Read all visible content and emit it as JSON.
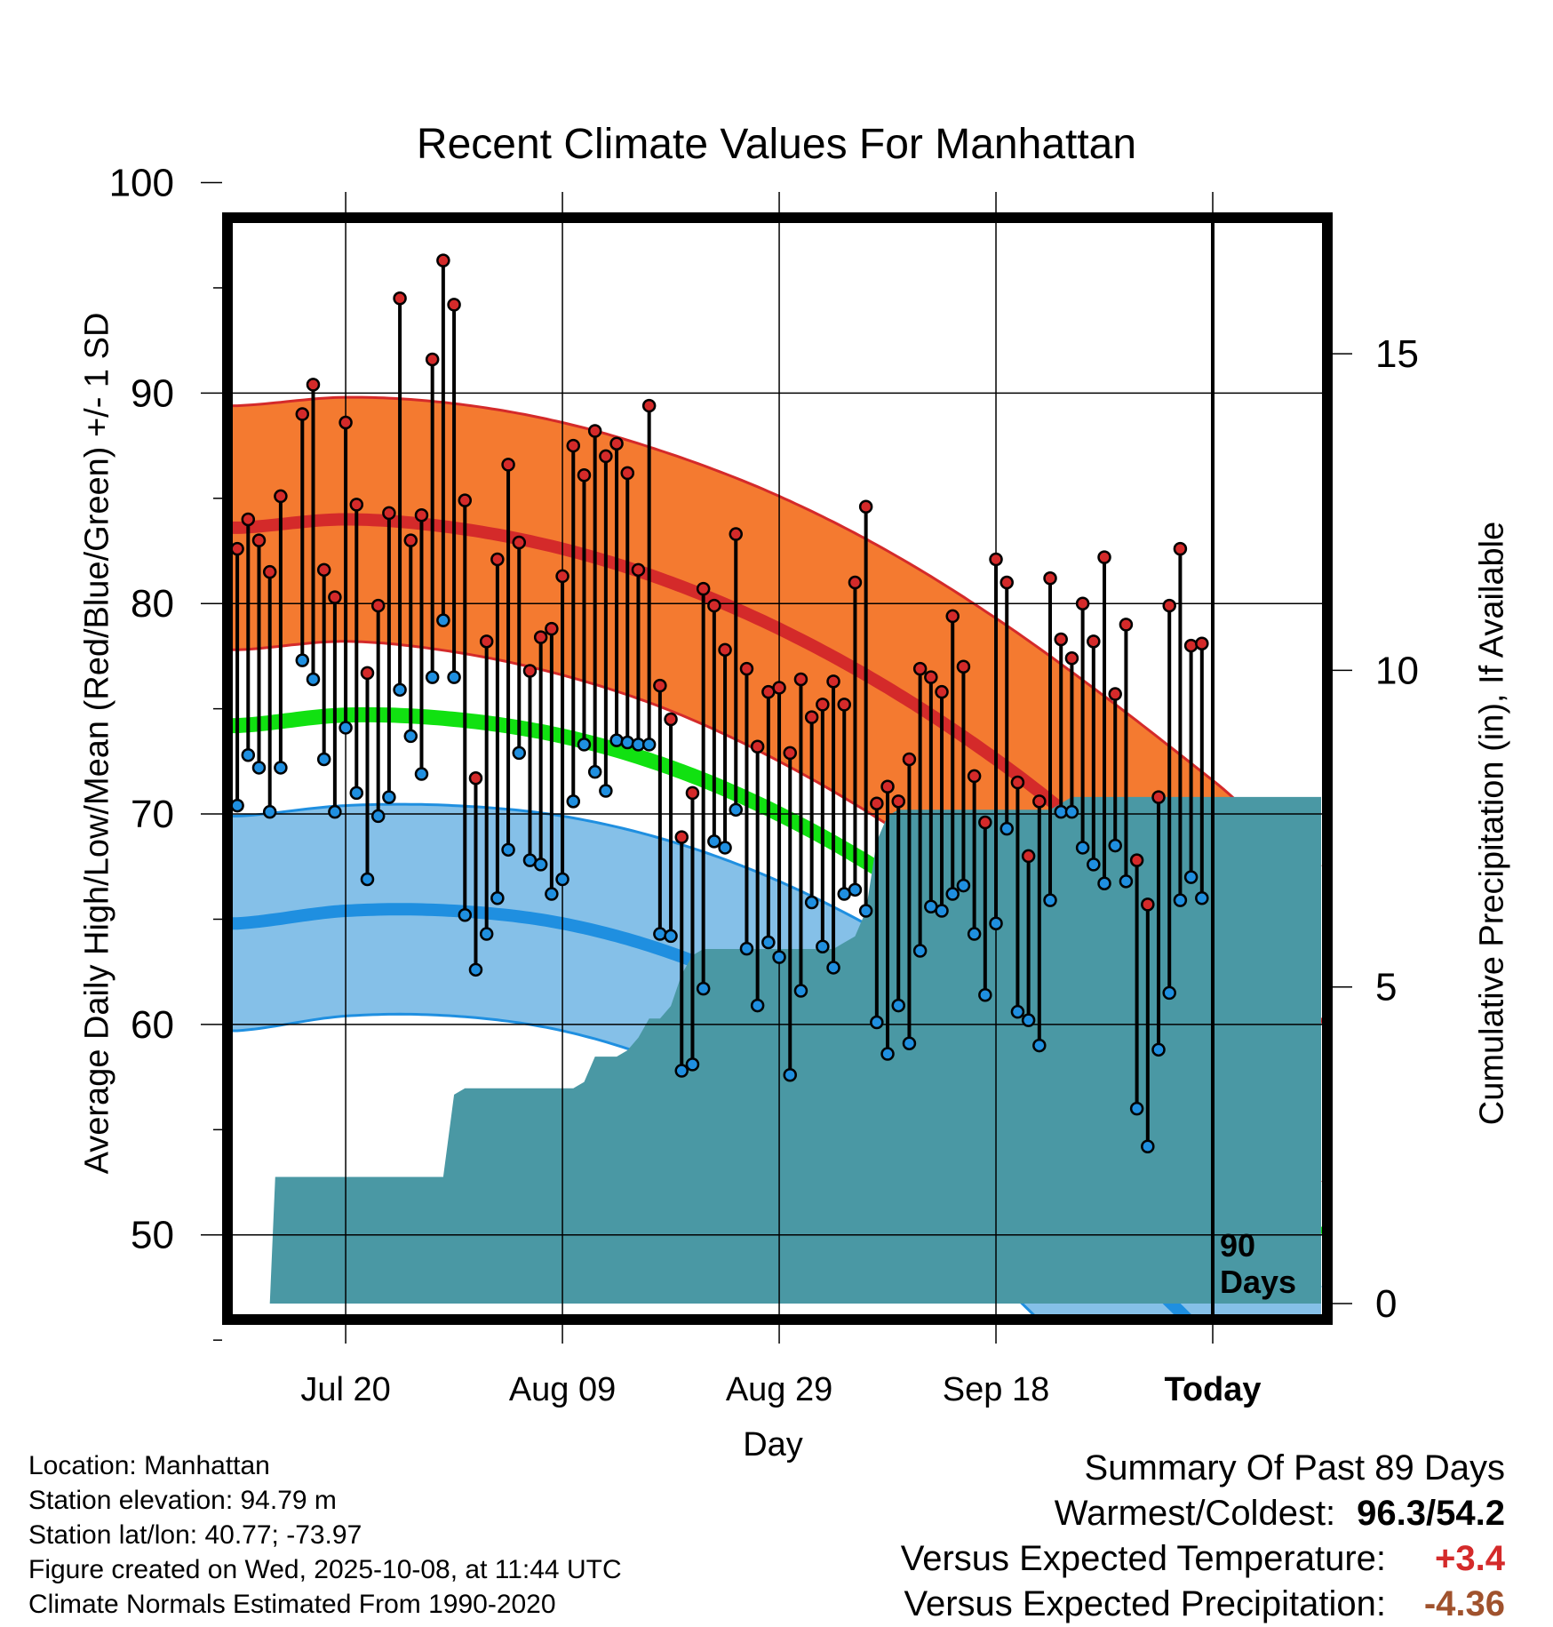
{
  "chart_data": {
    "type": "line",
    "title": "Recent Climate Values For Manhattan",
    "xlabel": "Day",
    "ylabel": "Average Daily High/Low/Mean (Red/Blue/Green) +/- 1 SD",
    "y2label": "Cumulative Precipitation (in), If Available",
    "x_ticks": [
      {
        "day": 10,
        "label": "Jul 20"
      },
      {
        "day": 30,
        "label": "Aug 09"
      },
      {
        "day": 50,
        "label": "Aug 29"
      },
      {
        "day": 70,
        "label": "Sep 18"
      },
      {
        "day": 90,
        "label": "Today"
      }
    ],
    "xlim": [
      -0.5,
      100
    ],
    "ylim": [
      44.5,
      101.5
    ],
    "y_ticks": [
      50,
      60,
      70,
      80,
      90,
      100
    ],
    "y2lim": [
      0,
      17.5
    ],
    "y2_ticks": [
      0,
      5,
      10,
      15
    ],
    "today_marker": {
      "day": 90,
      "label_line1": "90",
      "label_line2": "Days"
    },
    "normals": {
      "days": [
        0,
        10,
        20,
        30,
        40,
        50,
        60,
        70,
        80,
        90,
        100
      ],
      "high_mean": [
        83.6,
        84.0,
        83.6,
        82.6,
        81.0,
        78.8,
        76.0,
        72.6,
        68.6,
        64.4,
        60.0
      ],
      "high_sd": [
        5.8,
        5.8,
        5.9,
        6.0,
        6.1,
        6.3,
        6.5,
        6.7,
        7.0,
        7.2,
        7.5
      ],
      "low_mean": [
        64.8,
        65.4,
        65.4,
        64.8,
        63.4,
        61.2,
        58.2,
        54.4,
        49.8,
        44.8,
        39.5
      ],
      "low_sd": [
        5.1,
        5.0,
        5.0,
        5.1,
        5.3,
        5.6,
        6.0,
        6.5,
        7.0,
        7.5,
        8.0
      ],
      "mean": [
        74.2,
        74.7,
        74.5,
        73.7,
        72.2,
        70.0,
        67.1,
        63.5,
        59.2,
        54.6,
        50.0
      ]
    },
    "series": [
      {
        "name": "Daily High",
        "color": "#d42a2a",
        "values": [
          82.6,
          84.0,
          83.0,
          81.5,
          85.1,
          null,
          89.0,
          90.4,
          81.6,
          80.3,
          88.6,
          84.7,
          76.7,
          79.9,
          84.3,
          94.5,
          83.0,
          84.2,
          91.6,
          96.3,
          94.2,
          84.9,
          71.7,
          78.2,
          82.1,
          86.6,
          82.9,
          76.8,
          78.4,
          78.8,
          81.3,
          87.5,
          86.1,
          88.2,
          87.0,
          87.6,
          86.2,
          81.6,
          89.4,
          76.1,
          74.5,
          68.9,
          71.0,
          80.7,
          79.9,
          77.8,
          83.3,
          76.9,
          73.2,
          75.8,
          76.0,
          72.9,
          76.4,
          74.6,
          75.2,
          76.3,
          75.2,
          81.0,
          84.6,
          70.5,
          71.3,
          70.6,
          72.6,
          76.9,
          76.5,
          75.8,
          79.4,
          77.0,
          71.8,
          69.6,
          82.1,
          81.0,
          71.5,
          68.0,
          70.6,
          81.2,
          78.3,
          77.4,
          80.0,
          78.2,
          82.2,
          75.7,
          79.0,
          67.8,
          65.7,
          70.8,
          79.9,
          82.6,
          78.0,
          78.1
        ]
      },
      {
        "name": "Daily Low",
        "color": "#1f8fe0",
        "values": [
          70.4,
          72.8,
          72.2,
          70.1,
          72.2,
          null,
          77.3,
          76.4,
          72.6,
          70.1,
          74.1,
          71.0,
          66.9,
          69.9,
          70.8,
          75.9,
          73.7,
          71.9,
          76.5,
          79.2,
          76.5,
          65.2,
          62.6,
          64.3,
          66.0,
          68.3,
          72.9,
          67.8,
          67.6,
          66.2,
          66.9,
          70.6,
          73.3,
          72.0,
          71.1,
          73.5,
          73.4,
          73.3,
          73.3,
          64.3,
          64.2,
          57.8,
          58.1,
          61.7,
          68.7,
          68.4,
          70.2,
          63.6,
          60.9,
          63.9,
          63.2,
          57.6,
          61.6,
          65.8,
          63.7,
          62.7,
          66.2,
          66.4,
          65.4,
          60.1,
          58.6,
          60.9,
          59.1,
          63.5,
          65.6,
          65.4,
          66.2,
          66.6,
          64.3,
          61.4,
          64.8,
          69.3,
          60.6,
          60.2,
          59.0,
          65.9,
          70.1,
          70.1,
          68.4,
          67.6,
          66.7,
          68.5,
          66.8,
          56.0,
          54.2,
          58.8,
          61.5,
          65.9,
          67.0,
          66.0
        ]
      }
    ],
    "precip": {
      "days": [
        3,
        3.5,
        19,
        20,
        21,
        22,
        23,
        31,
        32,
        33,
        34,
        35,
        36,
        37,
        38,
        39,
        40,
        41,
        42,
        43,
        44,
        45,
        48,
        49,
        55,
        56,
        57,
        58,
        59,
        60,
        61,
        62,
        63,
        64,
        65,
        66,
        67,
        68,
        69,
        70,
        71,
        72,
        73,
        74,
        75,
        76,
        77,
        78,
        79,
        80,
        81,
        82,
        83,
        84,
        85,
        86,
        87,
        88,
        89,
        90,
        91,
        92,
        93,
        94,
        95,
        96,
        97,
        98,
        99,
        100
      ],
      "values": [
        0,
        2.0,
        2.0,
        3.3,
        3.4,
        3.4,
        3.4,
        3.4,
        3.5,
        3.9,
        3.9,
        3.9,
        4.0,
        4.2,
        4.5,
        4.5,
        4.7,
        5.2,
        5.5,
        5.6,
        5.6,
        5.6,
        5.6,
        5.6,
        5.6,
        5.7,
        5.8,
        6.2,
        7.3,
        7.7,
        7.8,
        7.8,
        7.8,
        7.8,
        7.8,
        7.8,
        7.8,
        7.8,
        7.8,
        7.8,
        7.8,
        7.8,
        7.8,
        7.8,
        7.8,
        7.9,
        8.0,
        8.0,
        8.0,
        8.0,
        8.0,
        8.0,
        8.0,
        8.0,
        8.0,
        8.0,
        8.0,
        8.0,
        8.0,
        8.0,
        8.0,
        8.0,
        8.0,
        8.0,
        8.0,
        8.0,
        8.0,
        8.0,
        8.0,
        8.0
      ]
    },
    "colors": {
      "high_band": "#f47a30",
      "high_line": "#d42a2a",
      "low_band": "#85c0e8",
      "low_line": "#1f8fe0",
      "mean_line": "#11e111",
      "precip_fill": "#4a98a4",
      "stem": "#000000"
    }
  },
  "info": {
    "location": "Location: Manhattan",
    "elevation": "Station elevation: 94.79 m",
    "latlon": "Station lat/lon: 40.77; -73.97",
    "created": "Figure created on Wed, 2025-10-08, at 11:44 UTC",
    "normals": "Climate Normals Estimated From 1990-2020"
  },
  "summary": {
    "heading": "Summary Of Past 89 Days",
    "warm_cold_label": "Warmest/Coldest:",
    "warm_cold_value": "96.3/54.2",
    "temp_label": "Versus Expected Temperature:",
    "temp_value": "+3.4",
    "precip_label": "Versus Expected Precipitation:",
    "precip_value": "-4.36"
  }
}
